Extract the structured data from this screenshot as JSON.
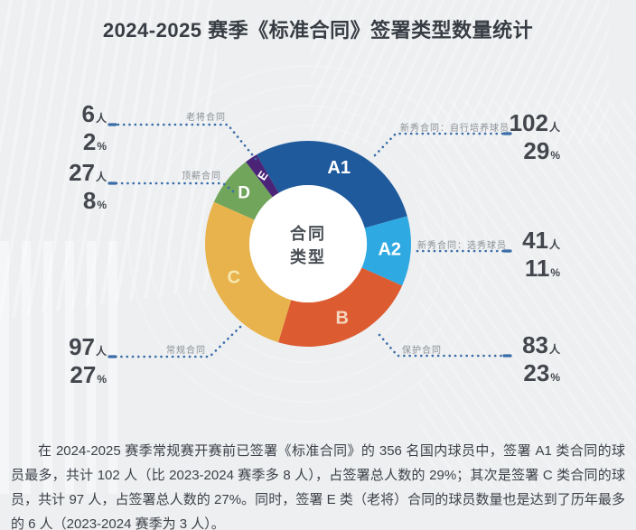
{
  "title": "2024-2025 赛季《标准合同》签署类型数量统计",
  "chart_data": {
    "type": "pie",
    "variant": "donut",
    "title": "2024-2025 赛季《标准合同》签署类型数量统计",
    "center_label_line1": "合同",
    "center_label_line2": "类型",
    "total_players": 356,
    "start_angle_deg": -30,
    "units": {
      "people": "人",
      "percent": "%"
    },
    "segments": [
      {
        "code": "A1",
        "label": "新秀合同：自行培养球员",
        "people": 102,
        "percent": 29,
        "color": "#1f5a9d",
        "letter_color": "#ffffff"
      },
      {
        "code": "A2",
        "label": "新秀合同：选秀球员",
        "people": 41,
        "percent": 11,
        "color": "#2fa9e1",
        "letter_color": "#ffffff"
      },
      {
        "code": "B",
        "label": "保护合同",
        "people": 83,
        "percent": 23,
        "color": "#dd5b31",
        "letter_color": "#f5d6c0"
      },
      {
        "code": "C",
        "label": "常规合同",
        "people": 97,
        "percent": 27,
        "color": "#e8b34c",
        "letter_color": "#f7e7af"
      },
      {
        "code": "D",
        "label": "顶薪合同",
        "people": 27,
        "percent": 8,
        "color": "#70a55b",
        "letter_color": "#ffffff"
      },
      {
        "code": "E",
        "label": "老将合同",
        "people": 6,
        "percent": 2,
        "color": "#4b2478",
        "letter_color": "#ffffff"
      }
    ]
  },
  "colors": {
    "background": "#edeff1",
    "leader_line": "#3a6ca8",
    "number_text": "#43474d",
    "label_text": "#8b9095",
    "title_text": "#383d44"
  },
  "footer": {
    "paragraph": "在 2024-2025 赛季常规赛开赛前已签署《标准合同》的 356 名国内球员中，签署 A1 类合同的球员最多，共计 102 人（比 2023-2024 赛季多 8 人），占签署总人数的 29%；其次是签署 C 类合同的球员，共计 97 人，占签署总人数的 27%。同时，签署 E 类（老将）合同的球员数量也是达到了历年最多的 6 人（2023-2024 赛季为 3 人）。"
  }
}
